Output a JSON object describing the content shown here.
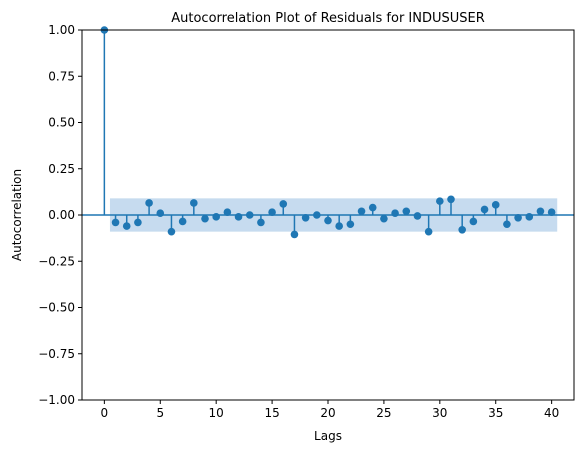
{
  "chart_data": {
    "type": "stem",
    "title": "Autocorrelation Plot of Residuals for INDUSUSER",
    "xlabel": "Lags",
    "ylabel": "Autocorrelation",
    "xlim": [
      -2,
      42
    ],
    "ylim": [
      -1.0,
      1.0
    ],
    "xticks": [
      0,
      5,
      10,
      15,
      20,
      25,
      30,
      35,
      40
    ],
    "yticks": [
      1.0,
      0.75,
      0.5,
      0.25,
      0.0,
      -0.25,
      -0.5,
      -0.75,
      -1.0
    ],
    "xtick_labels": [
      "0",
      "5",
      "10",
      "15",
      "20",
      "25",
      "30",
      "35",
      "40"
    ],
    "ytick_labels": [
      "1.00",
      "0.75",
      "0.50",
      "0.25",
      "0.00",
      "−0.25",
      "−0.50",
      "−0.75",
      "−1.00"
    ],
    "grid": false,
    "lags": [
      0,
      1,
      2,
      3,
      4,
      5,
      6,
      7,
      8,
      9,
      10,
      11,
      12,
      13,
      14,
      15,
      16,
      17,
      18,
      19,
      20,
      21,
      22,
      23,
      24,
      25,
      26,
      27,
      28,
      29,
      30,
      31,
      32,
      33,
      34,
      35,
      36,
      37,
      38,
      39,
      40
    ],
    "values": [
      1.0,
      -0.04,
      -0.06,
      -0.04,
      0.065,
      0.01,
      -0.09,
      -0.035,
      0.065,
      -0.02,
      -0.01,
      0.015,
      -0.01,
      0.0,
      -0.04,
      0.015,
      0.06,
      -0.105,
      -0.015,
      0.0,
      -0.03,
      -0.06,
      -0.05,
      0.02,
      0.04,
      -0.02,
      0.01,
      0.02,
      -0.005,
      -0.09,
      0.075,
      0.085,
      -0.08,
      -0.035,
      0.03,
      0.055,
      -0.05,
      -0.015,
      -0.01,
      0.02,
      0.015
    ],
    "confidence_band": {
      "lower": -0.09,
      "upper": 0.09,
      "from_lag": 0.5,
      "to_lag": 40.5
    },
    "colors": {
      "stem": "#1f77b4",
      "band": "#c6dbef",
      "zero_line": "#1f77b4"
    }
  }
}
